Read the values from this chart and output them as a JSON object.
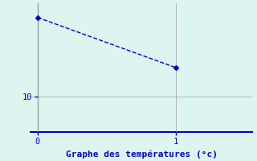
{
  "x": [
    0,
    1
  ],
  "y": [
    21,
    14
  ],
  "line_color": "#0000cc",
  "marker": "D",
  "marker_size": 3,
  "line_style": "--",
  "line_width": 1.0,
  "background_color": "#ddf5f0",
  "grid_color": "#aaaaaa",
  "left_spine_color": "#888888",
  "bottom_spine_color": "#0000cc",
  "title": "Graphe des températures (°c)",
  "title_color": "#0000cc",
  "title_fontsize": 8,
  "xlim": [
    -0.05,
    1.55
  ],
  "ylim": [
    5,
    23
  ],
  "yticks": [
    10
  ],
  "xticks": [
    0,
    1
  ],
  "tick_color": "#0000cc",
  "tick_fontsize": 7.5
}
